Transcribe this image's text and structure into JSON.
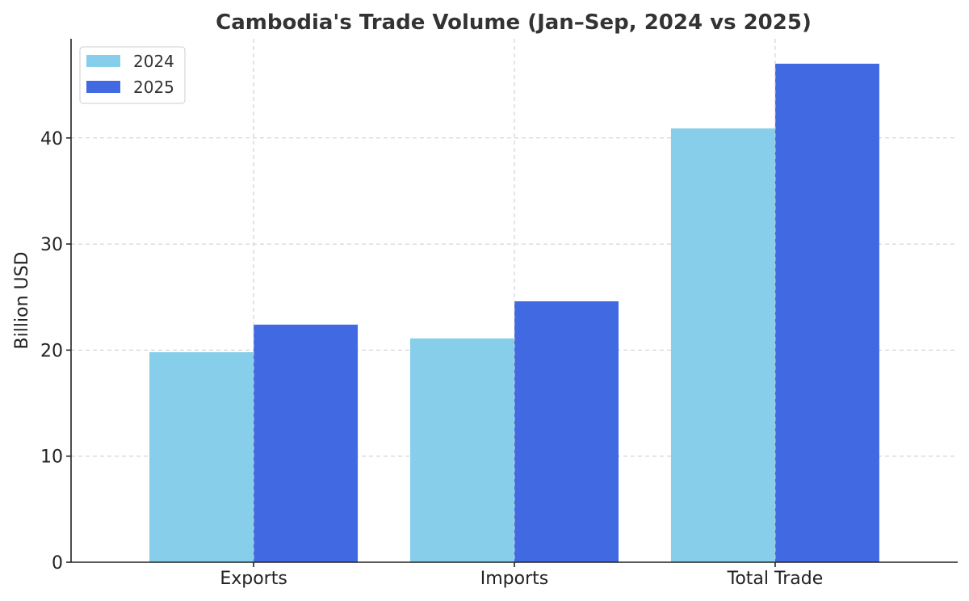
{
  "chart_data": {
    "type": "bar",
    "title": "Cambodia's Trade Volume (Jan–Sep, 2024 vs 2025)",
    "ylabel": "Billion USD",
    "xlabel": "",
    "categories": [
      "Exports",
      "Imports",
      "Total Trade"
    ],
    "series": [
      {
        "name": "2024",
        "values": [
          19.8,
          21.1,
          40.9
        ],
        "color": "#87CEEB"
      },
      {
        "name": "2025",
        "values": [
          22.4,
          24.6,
          47.0
        ],
        "color": "#4169E1"
      }
    ],
    "ylim": [
      0,
      49.35
    ],
    "yticks": [
      0,
      10,
      20,
      30,
      40
    ],
    "grid": true,
    "legend_position": "upper-left"
  }
}
